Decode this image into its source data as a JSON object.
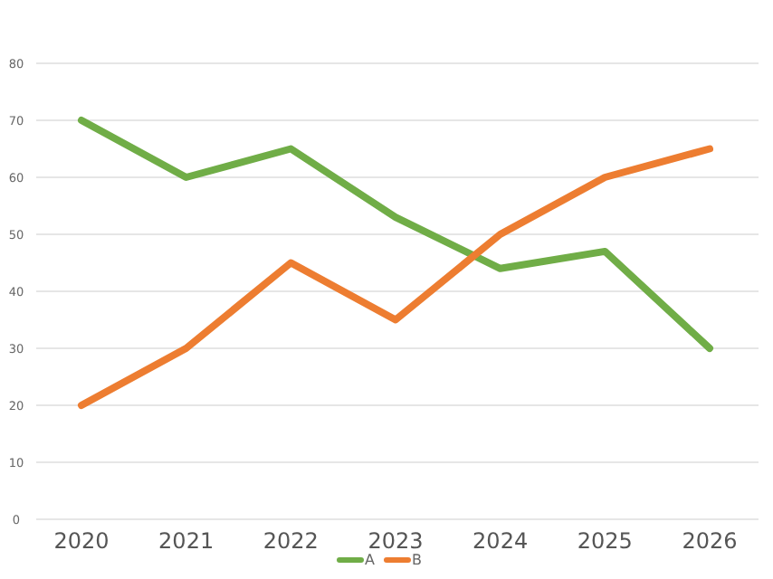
{
  "chart_data": {
    "type": "line",
    "categories": [
      "2020",
      "2021",
      "2022",
      "2023",
      "2024",
      "2025",
      "2026"
    ],
    "series": [
      {
        "name": "A",
        "color": "#70ad47",
        "values": [
          70,
          60,
          65,
          53,
          44,
          47,
          30
        ]
      },
      {
        "name": "B",
        "color": "#ed7d31",
        "values": [
          20,
          30,
          45,
          35,
          50,
          60,
          65
        ]
      }
    ],
    "ylim": [
      0,
      80
    ],
    "yticks": [
      0,
      10,
      20,
      30,
      40,
      50,
      60,
      70,
      80
    ],
    "grid": "y",
    "legend": "bottom",
    "marker": "none",
    "line_style": "solid"
  }
}
